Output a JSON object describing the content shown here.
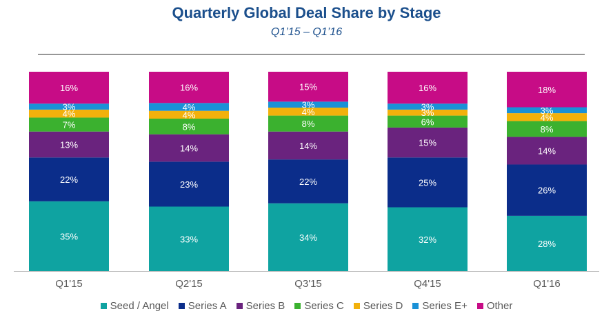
{
  "chart_data": {
    "type": "bar",
    "stacked": true,
    "title": "Quarterly Global Deal Share by Stage",
    "subtitle": "Q1’15 – Q1’16",
    "categories": [
      "Q1'15",
      "Q2'15",
      "Q3'15",
      "Q4'15",
      "Q1'16"
    ],
    "series": [
      {
        "name": "Seed / Angel",
        "color": "#0fa3a1",
        "values": [
          35,
          33,
          34,
          32,
          28
        ]
      },
      {
        "name": "Series A",
        "color": "#0b2d8a",
        "values": [
          22,
          23,
          22,
          25,
          26
        ]
      },
      {
        "name": "Series B",
        "color": "#6a237e",
        "values": [
          13,
          14,
          14,
          15,
          14
        ]
      },
      {
        "name": "Series C",
        "color": "#3bb12f",
        "values": [
          7,
          8,
          8,
          6,
          8
        ]
      },
      {
        "name": "Series D",
        "color": "#f2b10c",
        "values": [
          4,
          4,
          4,
          3,
          4
        ]
      },
      {
        "name": "Series E+",
        "color": "#1a91d7",
        "values": [
          3,
          4,
          3,
          3,
          3
        ]
      },
      {
        "name": "Other",
        "color": "#c70c86",
        "values": [
          16,
          16,
          15,
          16,
          18
        ]
      }
    ],
    "ylim": [
      0,
      100
    ],
    "data_labels": true,
    "legend_position": "bottom",
    "grid": false
  }
}
